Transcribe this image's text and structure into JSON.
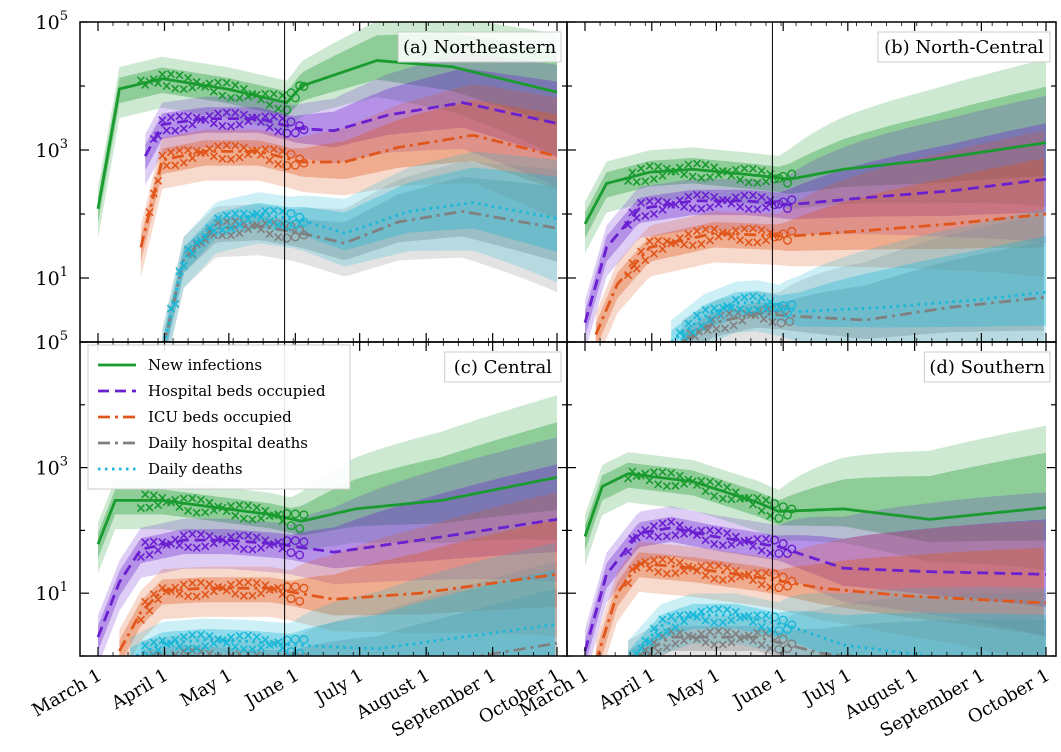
{
  "chart_data": {
    "type": "line",
    "yscale": "log",
    "ylim": [
      1,
      100000
    ],
    "y_tick_labels": [
      "10^5",
      "10^3",
      "10^1",
      "10^5",
      "10^3",
      "10^1"
    ],
    "x_ticks": [
      "March 1",
      "April 1",
      "May 1",
      "June 1",
      "July 1",
      "August 1",
      "September 1",
      "October 1"
    ],
    "x_range": [
      "2020-03-01",
      "2020-10-01"
    ],
    "vertical_line_date": "2020-05-27",
    "panels": [
      {
        "title": "(a) Northeastern",
        "series": [
          {
            "key": "infections",
            "values": [
              [
                0,
                120
              ],
              [
                10,
                9000
              ],
              [
                30,
                13000
              ],
              [
                60,
                9000
              ],
              [
                88,
                5500
              ],
              [
                95,
                10000
              ],
              [
                130,
                25000
              ],
              [
                165,
                20000
              ],
              [
                214,
                8000
              ]
            ]
          },
          {
            "key": "hospital",
            "values": [
              [
                22,
                800
              ],
              [
                30,
                2500
              ],
              [
                50,
                3100
              ],
              [
                75,
                3100
              ],
              [
                92,
                2200
              ],
              [
                110,
                2000
              ],
              [
                135,
                3500
              ],
              [
                170,
                5500
              ],
              [
                214,
                2600
              ]
            ]
          },
          {
            "key": "icu",
            "values": [
              [
                20,
                30
              ],
              [
                30,
                700
              ],
              [
                50,
                950
              ],
              [
                75,
                950
              ],
              [
                95,
                650
              ],
              [
                115,
                650
              ],
              [
                140,
                1100
              ],
              [
                175,
                1700
              ],
              [
                214,
                800
              ]
            ]
          },
          {
            "key": "hosp_deaths",
            "values": [
              [
                30,
                0.7
              ],
              [
                40,
                20
              ],
              [
                55,
                60
              ],
              [
                75,
                65
              ],
              [
                95,
                50
              ],
              [
                115,
                35
              ],
              [
                140,
                75
              ],
              [
                170,
                110
              ],
              [
                214,
                60
              ]
            ]
          },
          {
            "key": "deaths",
            "values": [
              [
                30,
                0.7
              ],
              [
                40,
                20
              ],
              [
                55,
                70
              ],
              [
                75,
                100
              ],
              [
                95,
                80
              ],
              [
                115,
                50
              ],
              [
                145,
                110
              ],
              [
                175,
                150
              ],
              [
                214,
                85
              ]
            ]
          }
        ]
      },
      {
        "title": "(b) North-Central",
        "series": [
          {
            "key": "infections",
            "values": [
              [
                0,
                70
              ],
              [
                10,
                300
              ],
              [
                30,
                450
              ],
              [
                50,
                500
              ],
              [
                80,
                400
              ],
              [
                95,
                350
              ],
              [
                120,
                500
              ],
              [
                160,
                700
              ],
              [
                214,
                1300
              ]
            ]
          },
          {
            "key": "hospital",
            "values": [
              [
                0,
                2
              ],
              [
                10,
                30
              ],
              [
                25,
                120
              ],
              [
                50,
                160
              ],
              [
                75,
                160
              ],
              [
                95,
                140
              ],
              [
                130,
                180
              ],
              [
                170,
                230
              ],
              [
                214,
                350
              ]
            ]
          },
          {
            "key": "icu",
            "values": [
              [
                5,
                1.3
              ],
              [
                15,
                8
              ],
              [
                30,
                30
              ],
              [
                60,
                50
              ],
              [
                95,
                45
              ],
              [
                130,
                55
              ],
              [
                170,
                70
              ],
              [
                214,
                100
              ]
            ]
          },
          {
            "key": "hosp_deaths",
            "values": [
              [
                45,
                1
              ],
              [
                60,
                2
              ],
              [
                80,
                2.8
              ],
              [
                100,
                2.5
              ],
              [
                130,
                2.2
              ],
              [
                170,
                3.5
              ],
              [
                214,
                5
              ]
            ]
          },
          {
            "key": "deaths",
            "values": [
              [
                40,
                1
              ],
              [
                55,
                2.5
              ],
              [
                70,
                4
              ],
              [
                80,
                4.2
              ],
              [
                100,
                3
              ],
              [
                140,
                3.5
              ],
              [
                180,
                4.5
              ],
              [
                214,
                6
              ]
            ]
          }
        ]
      },
      {
        "title": "(c) Central",
        "series": [
          {
            "key": "infections",
            "values": [
              [
                0,
                60
              ],
              [
                8,
                300
              ],
              [
                30,
                300
              ],
              [
                60,
                220
              ],
              [
                80,
                180
              ],
              [
                95,
                140
              ],
              [
                120,
                220
              ],
              [
                160,
                300
              ],
              [
                214,
                700
              ]
            ]
          },
          {
            "key": "hospital",
            "values": [
              [
                0,
                2
              ],
              [
                10,
                15
              ],
              [
                20,
                50
              ],
              [
                40,
                70
              ],
              [
                60,
                70
              ],
              [
                85,
                60
              ],
              [
                110,
                45
              ],
              [
                150,
                70
              ],
              [
                214,
                150
              ]
            ]
          },
          {
            "key": "icu",
            "values": [
              [
                10,
                1.2
              ],
              [
                20,
                5
              ],
              [
                30,
                11
              ],
              [
                50,
                12
              ],
              [
                80,
                12
              ],
              [
                110,
                8
              ],
              [
                150,
                10
              ],
              [
                214,
                20
              ]
            ]
          },
          {
            "key": "hosp_deaths",
            "values": [
              [
                20,
                0.8
              ],
              [
                40,
                1
              ],
              [
                60,
                0.9
              ],
              [
                90,
                0.8
              ],
              [
                130,
                0.6
              ],
              [
                170,
                0.9
              ],
              [
                214,
                1.6
              ]
            ]
          },
          {
            "key": "deaths",
            "values": [
              [
                15,
                0.9
              ],
              [
                30,
                1.6
              ],
              [
                50,
                1.8
              ],
              [
                70,
                1.7
              ],
              [
                90,
                1.5
              ],
              [
                130,
                1.3
              ],
              [
                170,
                2
              ],
              [
                214,
                3.2
              ]
            ]
          }
        ]
      },
      {
        "title": "(d) Southern",
        "series": [
          {
            "key": "infections",
            "values": [
              [
                0,
                80
              ],
              [
                8,
                500
              ],
              [
                20,
                800
              ],
              [
                50,
                600
              ],
              [
                80,
                280
              ],
              [
                90,
                200
              ],
              [
                120,
                220
              ],
              [
                160,
                150
              ],
              [
                214,
                230
              ]
            ]
          },
          {
            "key": "hospital",
            "values": [
              [
                0,
                1.2
              ],
              [
                10,
                20
              ],
              [
                25,
                90
              ],
              [
                40,
                110
              ],
              [
                60,
                80
              ],
              [
                90,
                55
              ],
              [
                120,
                25
              ],
              [
                160,
                22
              ],
              [
                214,
                20
              ]
            ]
          },
          {
            "key": "icu",
            "values": [
              [
                5,
                0.8
              ],
              [
                15,
                10
              ],
              [
                25,
                30
              ],
              [
                50,
                25
              ],
              [
                80,
                18
              ],
              [
                110,
                12
              ],
              [
                150,
                9
              ],
              [
                214,
                7
              ]
            ]
          },
          {
            "key": "hosp_deaths",
            "values": [
              [
                20,
                0.8
              ],
              [
                40,
                2
              ],
              [
                55,
                2
              ],
              [
                80,
                2
              ],
              [
                110,
                1.1
              ],
              [
                150,
                0.8
              ],
              [
                214,
                0.5
              ]
            ]
          },
          {
            "key": "deaths",
            "values": [
              [
                20,
                0.8
              ],
              [
                35,
                3
              ],
              [
                50,
                4.5
              ],
              [
                70,
                4.5
              ],
              [
                95,
                3
              ],
              [
                120,
                1.5
              ],
              [
                170,
                0.9
              ],
              [
                214,
                0.6
              ]
            ]
          }
        ]
      }
    ],
    "legend": [
      {
        "key": "infections",
        "label": "New infections",
        "color": "#1a9b2f",
        "dash": "solid"
      },
      {
        "key": "hospital",
        "label": "Hospital beds occupied",
        "color": "#6a1fd0",
        "dash": "dashed"
      },
      {
        "key": "icu",
        "label": "ICU beds occupied",
        "color": "#e0561b",
        "dash": "dashdot"
      },
      {
        "key": "hosp_deaths",
        "label": "Daily hospital deaths",
        "color": "#808080",
        "dash": "dashdot"
      },
      {
        "key": "deaths",
        "label": "Daily deaths",
        "color": "#1ab8d8",
        "dash": "dotted"
      }
    ]
  }
}
